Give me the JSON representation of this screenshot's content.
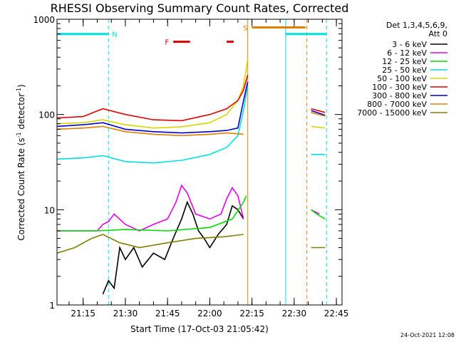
{
  "chart_data": {
    "type": "line",
    "title": "RHESSI Observing Summary Count Rates, Corrected",
    "xlabel": "Start Time (17-Oct-03 21:05:42)",
    "ylabel": "Corrected Count Rate (s^-1 detector^-1)",
    "ylabel_main": "Corrected Count Rate (s",
    "ylabel_sup1": "-1",
    "ylabel_mid": " detector",
    "ylabel_sup2": "-1",
    "ylabel_end": ")",
    "y_scale": "log",
    "ylim": [
      1,
      1000
    ],
    "xlim": [
      "21:05:42",
      "22:47:00"
    ],
    "x_ticks": [
      "21:15",
      "21:30",
      "21:45",
      "22:00",
      "22:15",
      "22:30",
      "22:45"
    ],
    "y_ticks": [
      {
        "value": 1,
        "label": "1"
      },
      {
        "value": 10,
        "label": "10"
      },
      {
        "value": 100,
        "label": "100"
      },
      {
        "value": 1000,
        "label": "1000"
      }
    ],
    "legend_header": [
      "Det 1,3,4,5,6,9,",
      "Att 0"
    ],
    "legend_position": "right",
    "series": [
      {
        "name": "3 - 6 keV",
        "color": "#000000",
        "points": [
          [
            "21:22:00",
            1.3
          ],
          [
            "21:24:00",
            1.8
          ],
          [
            "21:26:00",
            1.5
          ],
          [
            "21:28:00",
            4
          ],
          [
            "21:30:00",
            3
          ],
          [
            "21:33:00",
            4
          ],
          [
            "21:36:00",
            2.5
          ],
          [
            "21:40:00",
            3.5
          ],
          [
            "21:44:00",
            3
          ],
          [
            "21:47:00",
            5
          ],
          [
            "21:50:00",
            8
          ],
          [
            "21:52:00",
            12
          ],
          [
            "21:54:00",
            9
          ],
          [
            "21:56:00",
            6
          ],
          [
            "21:58:00",
            5
          ],
          [
            "22:00:00",
            4
          ],
          [
            "22:03:00",
            5.5
          ],
          [
            "22:06:00",
            7
          ],
          [
            "22:08:00",
            11
          ],
          [
            "22:10:00",
            10
          ],
          [
            "22:12:00",
            8
          ]
        ]
      },
      {
        "name": "6 - 12 keV",
        "color": "#e600e6",
        "points": [
          [
            "21:05:42",
            6
          ],
          [
            "21:20:00",
            6
          ],
          [
            "21:22:00",
            7
          ],
          [
            "21:24:00",
            7.5
          ],
          [
            "21:26:00",
            9
          ],
          [
            "21:30:00",
            7
          ],
          [
            "21:35:00",
            6
          ],
          [
            "21:40:00",
            7
          ],
          [
            "21:45:00",
            8
          ],
          [
            "21:48:00",
            12
          ],
          [
            "21:50:00",
            18
          ],
          [
            "21:52:00",
            15
          ],
          [
            "21:55:00",
            9
          ],
          [
            "22:00:00",
            8
          ],
          [
            "22:04:00",
            9
          ],
          [
            "22:06:00",
            13
          ],
          [
            "22:08:00",
            17
          ],
          [
            "22:10:00",
            14
          ],
          [
            "22:12:00",
            8
          ],
          [
            "22:36:00",
            10
          ],
          [
            "22:39:00",
            9
          ]
        ]
      },
      {
        "name": "12 - 25 keV",
        "color": "#00dd00",
        "points": [
          [
            "21:05:42",
            6
          ],
          [
            "21:20:00",
            6
          ],
          [
            "21:30:00",
            6.2
          ],
          [
            "21:45:00",
            6
          ],
          [
            "22:00:00",
            6.5
          ],
          [
            "22:08:00",
            8
          ],
          [
            "22:12:00",
            12
          ],
          [
            "22:13:00",
            14
          ],
          [
            "22:36:00",
            10
          ],
          [
            "22:38:00",
            9
          ],
          [
            "22:41:00",
            8
          ]
        ]
      },
      {
        "name": "25 - 50 keV",
        "color": "#00e0e0",
        "points": [
          [
            "21:05:42",
            34
          ],
          [
            "21:15:00",
            35
          ],
          [
            "21:22:00",
            37
          ],
          [
            "21:30:00",
            32
          ],
          [
            "21:40:00",
            31
          ],
          [
            "21:50:00",
            33
          ],
          [
            "22:00:00",
            38
          ],
          [
            "22:06:00",
            45
          ],
          [
            "22:10:00",
            60
          ],
          [
            "22:12:00",
            110
          ],
          [
            "22:13:30",
            200
          ],
          [
            "22:36:00",
            38
          ],
          [
            "22:41:00",
            38
          ]
        ]
      },
      {
        "name": "50 - 100 keV",
        "color": "#d6d600",
        "points": [
          [
            "21:05:42",
            80
          ],
          [
            "21:15:00",
            82
          ],
          [
            "21:22:00",
            88
          ],
          [
            "21:30:00",
            78
          ],
          [
            "21:40:00",
            72
          ],
          [
            "21:50:00",
            74
          ],
          [
            "22:00:00",
            82
          ],
          [
            "22:06:00",
            100
          ],
          [
            "22:10:00",
            140
          ],
          [
            "22:12:00",
            200
          ],
          [
            "22:13:30",
            380
          ],
          [
            "22:36:00",
            75
          ],
          [
            "22:41:00",
            72
          ]
        ]
      },
      {
        "name": "100 - 300 keV",
        "color": "#e00000",
        "points": [
          [
            "21:05:42",
            92
          ],
          [
            "21:15:00",
            95
          ],
          [
            "21:22:00",
            115
          ],
          [
            "21:30:00",
            100
          ],
          [
            "21:40:00",
            88
          ],
          [
            "21:50:00",
            86
          ],
          [
            "22:00:00",
            100
          ],
          [
            "22:06:00",
            115
          ],
          [
            "22:10:00",
            140
          ],
          [
            "22:12:00",
            180
          ],
          [
            "22:13:30",
            260
          ],
          [
            "22:36:00",
            115
          ],
          [
            "22:41:00",
            105
          ]
        ]
      },
      {
        "name": "300 - 800 keV",
        "color": "#0000cc",
        "points": [
          [
            "21:05:42",
            75
          ],
          [
            "21:15:00",
            78
          ],
          [
            "21:22:00",
            82
          ],
          [
            "21:30:00",
            70
          ],
          [
            "21:40:00",
            66
          ],
          [
            "21:50:00",
            64
          ],
          [
            "22:00:00",
            66
          ],
          [
            "22:06:00",
            68
          ],
          [
            "22:10:00",
            72
          ],
          [
            "22:12:00",
            140
          ],
          [
            "22:13:30",
            220
          ],
          [
            "22:36:00",
            110
          ],
          [
            "22:41:00",
            98
          ]
        ]
      },
      {
        "name": "800 - 7000 keV",
        "color": "#e08000",
        "points": [
          [
            "21:05:42",
            70
          ],
          [
            "21:15:00",
            72
          ],
          [
            "21:22:00",
            75
          ],
          [
            "21:30:00",
            66
          ],
          [
            "21:40:00",
            62
          ],
          [
            "21:50:00",
            60
          ],
          [
            "22:00:00",
            62
          ],
          [
            "22:06:00",
            64
          ],
          [
            "22:12:00",
            62
          ],
          [
            "22:36:00",
            105
          ],
          [
            "22:41:00",
            96
          ]
        ]
      },
      {
        "name": "7000 - 15000 keV",
        "color": "#808000",
        "points": [
          [
            "21:05:42",
            3.5
          ],
          [
            "21:12:00",
            4
          ],
          [
            "21:18:00",
            5
          ],
          [
            "21:22:00",
            5.5
          ],
          [
            "21:28:00",
            4.5
          ],
          [
            "21:35:00",
            4
          ],
          [
            "21:45:00",
            4.5
          ],
          [
            "21:55:00",
            5
          ],
          [
            "22:05:00",
            5.2
          ],
          [
            "22:12:00",
            5.5
          ],
          [
            "22:36:00",
            4
          ],
          [
            "22:41:00",
            4
          ]
        ]
      }
    ],
    "night_periods": [
      [
        "21:05:42",
        "21:24:00"
      ],
      [
        "22:27:00",
        "22:41:30"
      ]
    ],
    "saa_period": [
      "22:13:30",
      "22:34:30"
    ],
    "markers": [
      {
        "label": "N",
        "color": "#00e0e0",
        "from": "21:05:42",
        "to": "21:24:00",
        "level": 700
      },
      {
        "label": "N",
        "color": "#00e0e0",
        "from": "22:27:00",
        "to": "22:41:30",
        "level": 700
      },
      {
        "label": "F",
        "color": "#e00000",
        "from": "21:47:00",
        "to": "21:53:00",
        "level": 580
      },
      {
        "label": "F",
        "color": "#e00000",
        "from": "22:06:00",
        "to": "22:08:30",
        "level": 580
      },
      {
        "label": "S",
        "color": "#e08000",
        "from": "22:15:00",
        "to": "22:34:00",
        "level": 820
      }
    ],
    "grid": false
  },
  "timestamp": "24-Oct-2021 12:08"
}
